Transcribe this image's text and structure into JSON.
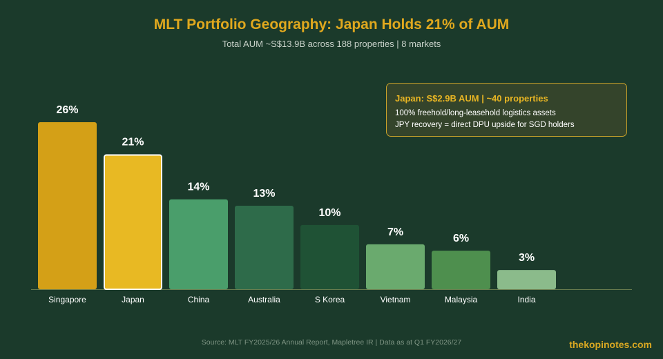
{
  "chart_data": {
    "type": "bar",
    "title": "MLT Portfolio Geography: Japan Holds 21% of AUM",
    "subtitle": "Total AUM ~S$13.9B across 188 properties | 8 markets",
    "categories": [
      "Singapore",
      "Japan",
      "China",
      "Australia",
      "S Korea",
      "Vietnam",
      "Malaysia",
      "India"
    ],
    "values": [
      26,
      21,
      14,
      13,
      10,
      7,
      6,
      3
    ],
    "value_labels": [
      "26%",
      "21%",
      "14%",
      "13%",
      "10%",
      "7%",
      "6%",
      "3%"
    ],
    "bar_colors": [
      "#d4a017",
      "#e8b923",
      "#4a9e6b",
      "#2e6b4a",
      "#1f5235",
      "#6aaa6e",
      "#4e8f4e",
      "#8bbb8b"
    ],
    "highlight": "Japan",
    "highlight_border_color": "#ffffff",
    "xlabel": "",
    "ylabel": "",
    "ylim": [
      0,
      26
    ],
    "grid": false,
    "legend": "none"
  },
  "callout": {
    "title": "Japan: S$2.9B AUM | ~40 properties",
    "line1": "100% freehold/long-leasehold logistics assets",
    "line2": "JPY recovery = direct DPU upside for SGD holders"
  },
  "footer": {
    "source": "Source: MLT FY2025/26 Annual Report, Mapletree IR | Data as at Q1 FY2026/27",
    "brand": "thekopinotes.com"
  },
  "colors": {
    "background": "#1b3a2b",
    "title": "#e0a81e",
    "axis": "#6b7d4f"
  }
}
